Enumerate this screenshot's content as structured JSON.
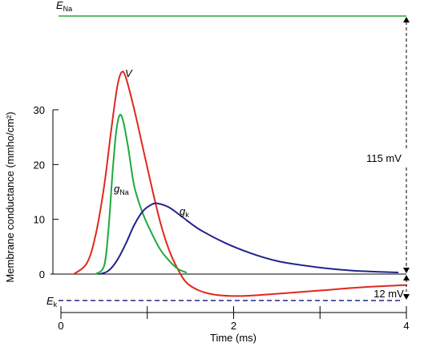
{
  "chart_data": {
    "type": "line",
    "xlabel": "Time (ms)",
    "ylabel": "Membrane conductance (mmho/cm²)",
    "xlim": [
      0,
      4
    ],
    "ylim": [
      0,
      30
    ],
    "x_ticks": [
      "0",
      "2",
      "4"
    ],
    "y_ticks": [
      "0",
      "10",
      "20",
      "30"
    ],
    "colors": {
      "V": "#e0281e",
      "gNa": "#1eaa3c",
      "gK": "#23238c",
      "ENa_line": "#1eaa3c",
      "Ek_line": "#23238c"
    },
    "series": [
      {
        "name": "V",
        "x": [
          0.15,
          0.3,
          0.4,
          0.5,
          0.58,
          0.65,
          0.7,
          0.75,
          0.85,
          0.95,
          1.05,
          1.15,
          1.25,
          1.35,
          1.45,
          1.6,
          1.8,
          2.1,
          2.5,
          3.0,
          3.5,
          4.0
        ],
        "y": [
          0,
          2,
          7,
          16,
          26,
          34,
          36.8,
          36,
          30,
          23,
          16,
          9.5,
          4.5,
          1,
          -1.5,
          -3,
          -3.8,
          -4,
          -3.6,
          -3.0,
          -2.4,
          -2
        ]
      },
      {
        "name": "g_Na",
        "x": [
          0.4,
          0.5,
          0.55,
          0.6,
          0.64,
          0.68,
          0.72,
          0.78,
          0.85,
          0.95,
          1.05,
          1.15,
          1.25,
          1.35,
          1.45
        ],
        "y": [
          0,
          1.5,
          8,
          19,
          26,
          29,
          28,
          23,
          16,
          11,
          7.5,
          4.5,
          2.5,
          1,
          0.3
        ]
      },
      {
        "name": "g_K",
        "x": [
          0.45,
          0.55,
          0.65,
          0.75,
          0.85,
          0.95,
          1.05,
          1.12,
          1.25,
          1.4,
          1.6,
          1.9,
          2.2,
          2.5,
          2.8,
          3.1,
          3.4,
          3.7,
          3.9
        ],
        "y": [
          0,
          0.6,
          2.5,
          5.5,
          9,
          11.5,
          12.7,
          12.9,
          12.2,
          10.5,
          8.2,
          5.7,
          3.8,
          2.4,
          1.6,
          1.0,
          0.6,
          0.4,
          0.3
        ]
      }
    ],
    "reference_lines": [
      {
        "name": "E_Na",
        "y": 35.8,
        "style": "solid"
      },
      {
        "name": "E_k",
        "y": -4.9,
        "style": "dashed"
      }
    ],
    "annotations": {
      "V": "V",
      "gNa": "g",
      "gNa_sub": "Na",
      "gK": "g",
      "gK_sub": "k",
      "ENa": "E",
      "ENa_sub": "Na",
      "Ek": "E",
      "Ek_sub": "k",
      "range_115": "115 mV",
      "range_12": "12 mV"
    }
  }
}
